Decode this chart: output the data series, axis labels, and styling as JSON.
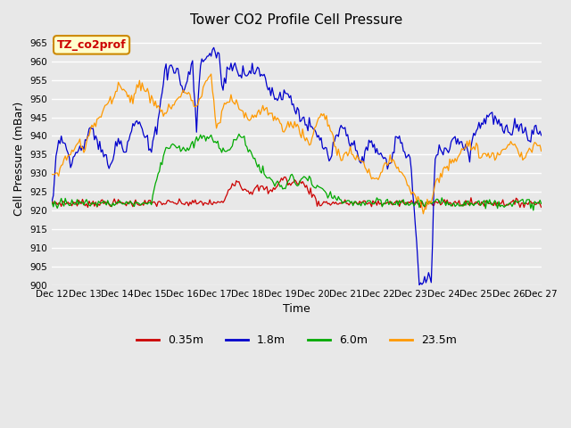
{
  "title": "Tower CO2 Profile Cell Pressure",
  "ylabel": "Cell Pressure (mBar)",
  "xlabel": "Time",
  "ylim": [
    900,
    968
  ],
  "yticks": [
    900,
    905,
    910,
    915,
    920,
    925,
    930,
    935,
    940,
    945,
    950,
    955,
    960,
    965
  ],
  "background_color": "#e8e8e8",
  "plot_background": "#e8e8e8",
  "label_box_text": "TZ_co2prof",
  "label_box_color": "#ffffcc",
  "label_box_border": "#cc8800",
  "label_text_color": "#cc0000",
  "series": {
    "0.35m": {
      "color": "#cc0000",
      "label": "0.35m"
    },
    "1.8m": {
      "color": "#0000cc",
      "label": "1.8m"
    },
    "6.0m": {
      "color": "#00aa00",
      "label": "6.0m"
    },
    "23.5m": {
      "color": "#ff9900",
      "label": "23.5m"
    }
  },
  "n_points": 370,
  "x_tick_labels": [
    "Dec 12",
    "Dec 13",
    "Dec 14",
    "Dec 15",
    "Dec 16",
    "Dec 17",
    "Dec 18",
    "Dec 19",
    "Dec 20",
    "Dec 21",
    "Dec 22",
    "Dec 23",
    "Dec 24",
    "Dec 25",
    "Dec 26",
    "Dec 27"
  ],
  "grid_color": "#ffffff",
  "grid_linewidth": 1.0,
  "title_fontsize": 11,
  "axis_label_fontsize": 9,
  "tick_fontsize": 7.5,
  "legend_fontsize": 9
}
